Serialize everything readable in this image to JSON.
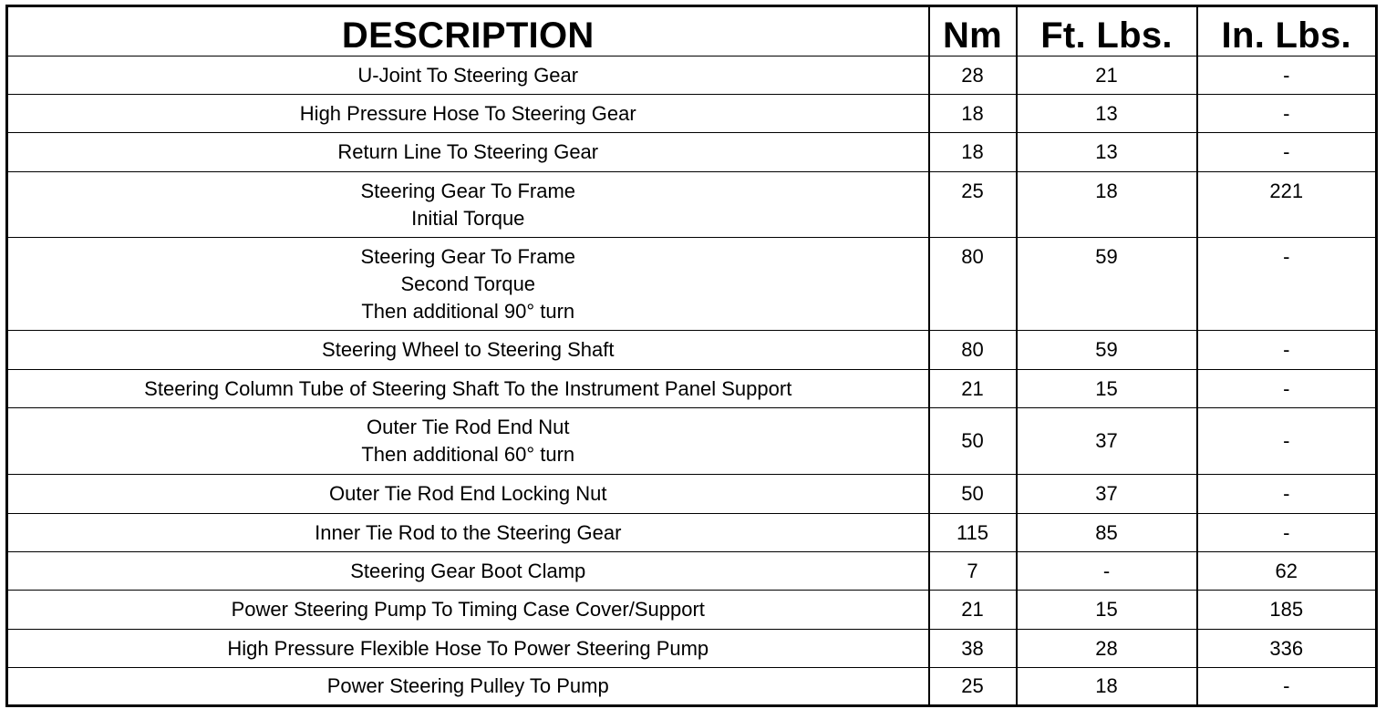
{
  "headers": {
    "description": "DESCRIPTION",
    "nm": "Nm",
    "ft_lbs": "Ft. Lbs.",
    "in_lbs": "In. Lbs."
  },
  "rows": [
    {
      "description": [
        "U-Joint To Steering Gear"
      ],
      "nm": "28",
      "ft_lbs": "21",
      "in_lbs": "-"
    },
    {
      "description": [
        "High Pressure Hose To Steering Gear"
      ],
      "nm": "18",
      "ft_lbs": "13",
      "in_lbs": "-"
    },
    {
      "description": [
        "Return Line To Steering Gear"
      ],
      "nm": "18",
      "ft_lbs": "13",
      "in_lbs": "-"
    },
    {
      "description": [
        "Steering Gear To Frame",
        "Initial Torque"
      ],
      "nm": "25",
      "ft_lbs": "18",
      "in_lbs": "221"
    },
    {
      "description": [
        "Steering Gear To Frame",
        "Second Torque",
        "Then additional 90° turn"
      ],
      "nm": "80",
      "ft_lbs": "59",
      "in_lbs": "-"
    },
    {
      "description": [
        "Steering Wheel to Steering Shaft"
      ],
      "nm": "80",
      "ft_lbs": "59",
      "in_lbs": "-"
    },
    {
      "description": [
        "Steering Column Tube of Steering Shaft To the Instrument Panel Support"
      ],
      "nm": "21",
      "ft_lbs": "15",
      "in_lbs": "-"
    },
    {
      "description": [
        "Outer Tie Rod End Nut",
        "Then additional 60° turn"
      ],
      "nm": "50",
      "ft_lbs": "37",
      "in_lbs": "-"
    },
    {
      "description": [
        "Outer Tie Rod End Locking Nut"
      ],
      "nm": "50",
      "ft_lbs": "37",
      "in_lbs": "-"
    },
    {
      "description": [
        "Inner Tie Rod to the Steering Gear"
      ],
      "nm": "115",
      "ft_lbs": "85",
      "in_lbs": "-"
    },
    {
      "description": [
        "Steering Gear Boot Clamp"
      ],
      "nm": "7",
      "ft_lbs": "-",
      "in_lbs": "62"
    },
    {
      "description": [
        "Power Steering Pump To Timing Case Cover/Support"
      ],
      "nm": "21",
      "ft_lbs": "15",
      "in_lbs": "185"
    },
    {
      "description": [
        "High Pressure Flexible Hose To Power Steering Pump"
      ],
      "nm": "38",
      "ft_lbs": "28",
      "in_lbs": "336"
    },
    {
      "description": [
        "Power Steering Pulley To Pump"
      ],
      "nm": "25",
      "ft_lbs": "18",
      "in_lbs": "-"
    }
  ]
}
